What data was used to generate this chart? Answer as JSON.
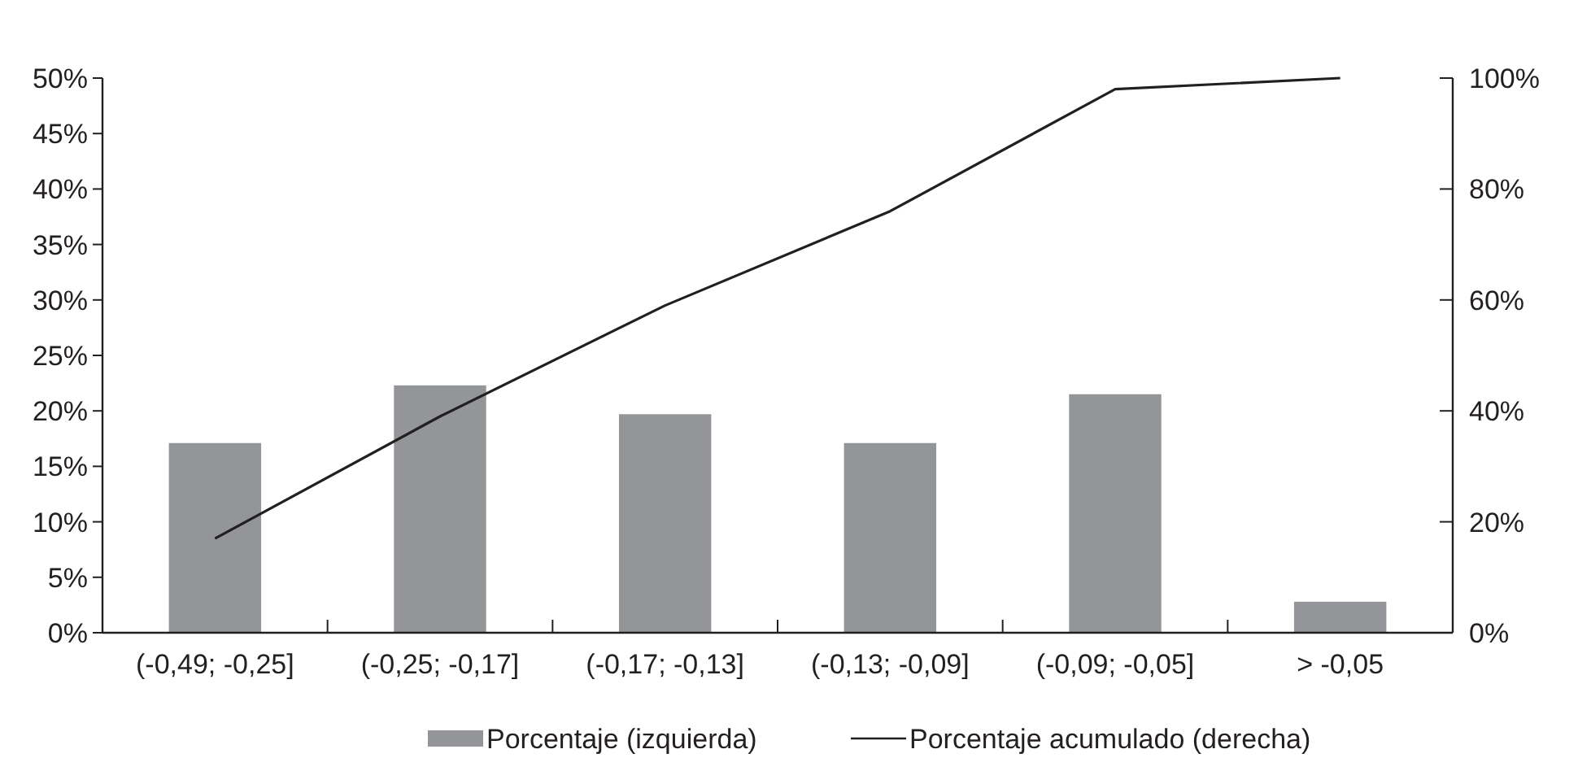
{
  "chart_data": {
    "type": "bar",
    "categories": [
      "(-0,49; -0,25]",
      "(-0,25; -0,17]",
      "(-0,17; -0,13]",
      "(-0,13; -0,09]",
      "(-0,09; -0,05]",
      "> -0,05"
    ],
    "series": [
      {
        "name": "Porcentaje (izquierda)",
        "color": "#939598",
        "values": [
          17.1,
          22.3,
          19.7,
          17.1,
          21.5,
          2.8
        ]
      },
      {
        "name": "Porcentaje acumulado (derecha)",
        "type": "line",
        "axis": "y2",
        "color": "#231f20",
        "values": [
          17,
          39,
          59,
          76,
          98,
          100
        ]
      }
    ],
    "ylim": [
      0,
      50
    ],
    "yticks": [
      {
        "value": 0,
        "label": "0%"
      },
      {
        "value": 5,
        "label": "5%"
      },
      {
        "value": 10,
        "label": "10%"
      },
      {
        "value": 15,
        "label": "15%"
      },
      {
        "value": 20,
        "label": "20%"
      },
      {
        "value": 25,
        "label": "25%"
      },
      {
        "value": 30,
        "label": "30%"
      },
      {
        "value": 35,
        "label": "35%"
      },
      {
        "value": 40,
        "label": "40%"
      },
      {
        "value": 45,
        "label": "45%"
      },
      {
        "value": 50,
        "label": "50%"
      }
    ],
    "y2lim": [
      0,
      100
    ],
    "y2ticks": [
      {
        "value": 0,
        "label": "0%"
      },
      {
        "value": 20,
        "label": "20%"
      },
      {
        "value": 40,
        "label": "40%"
      },
      {
        "value": 60,
        "label": "60%"
      },
      {
        "value": 80,
        "label": "80%"
      },
      {
        "value": 100,
        "label": "100%"
      }
    ],
    "legend": "bottom",
    "grid": false
  }
}
